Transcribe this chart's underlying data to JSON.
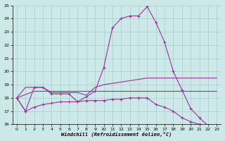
{
  "xlabel": "Windchill (Refroidissement éolien,°C)",
  "background_color": "#cce8e8",
  "grid_color": "#aacccc",
  "line_color": "#993399",
  "ylim": [
    16,
    25
  ],
  "xlim": [
    -0.5,
    23.5
  ],
  "yticks": [
    16,
    17,
    18,
    19,
    20,
    21,
    22,
    23,
    24,
    25
  ],
  "xticks": [
    0,
    1,
    2,
    3,
    4,
    5,
    6,
    7,
    8,
    9,
    10,
    11,
    12,
    13,
    14,
    15,
    16,
    17,
    18,
    19,
    20,
    21,
    22,
    23
  ],
  "curve1_x": [
    0,
    1,
    2,
    3,
    4,
    5,
    6,
    7,
    8,
    9,
    10,
    11,
    12,
    13,
    14,
    15,
    16,
    17,
    18,
    19,
    20,
    21,
    22,
    23
  ],
  "curve1_y": [
    18.0,
    17.0,
    18.8,
    18.8,
    18.3,
    18.3,
    18.3,
    17.7,
    18.1,
    18.5,
    20.3,
    23.3,
    24.0,
    24.2,
    24.2,
    24.9,
    23.7,
    22.2,
    20.0,
    18.6,
    17.2,
    16.5,
    15.9,
    15.9
  ],
  "curve2_x": [
    0,
    1,
    2,
    3,
    4,
    5,
    6,
    7,
    8,
    9,
    10,
    11,
    12,
    13,
    14,
    15,
    16,
    17,
    18,
    19,
    20,
    21,
    22,
    23
  ],
  "curve2_y": [
    18.0,
    18.8,
    18.8,
    18.8,
    18.4,
    18.4,
    18.4,
    18.4,
    18.2,
    18.8,
    19.0,
    19.1,
    19.2,
    19.3,
    19.4,
    19.5,
    19.5,
    19.5,
    19.5,
    19.5,
    19.5,
    19.5,
    19.5,
    19.5
  ],
  "curve3_x": [
    0,
    2,
    3,
    4,
    5,
    6,
    7,
    8,
    9,
    10,
    11,
    12,
    13,
    14,
    15,
    16,
    17,
    18,
    19,
    20,
    21,
    22,
    23
  ],
  "curve3_y": [
    18.0,
    18.5,
    18.5,
    18.5,
    18.5,
    18.5,
    18.5,
    18.5,
    18.5,
    18.5,
    18.5,
    18.5,
    18.5,
    18.5,
    18.5,
    18.5,
    18.5,
    18.5,
    18.5,
    18.5,
    18.5,
    18.5,
    18.5
  ],
  "curve4_x": [
    0,
    1,
    2,
    3,
    4,
    5,
    6,
    7,
    8,
    9,
    10,
    11,
    12,
    13,
    14,
    15,
    16,
    17,
    18,
    19,
    20,
    21,
    22,
    23
  ],
  "curve4_y": [
    18.0,
    17.0,
    17.3,
    17.5,
    17.6,
    17.7,
    17.7,
    17.7,
    17.8,
    17.8,
    17.8,
    17.9,
    17.9,
    18.0,
    18.0,
    18.0,
    17.5,
    17.3,
    17.0,
    16.5,
    16.2,
    16.0,
    15.9,
    15.8
  ]
}
